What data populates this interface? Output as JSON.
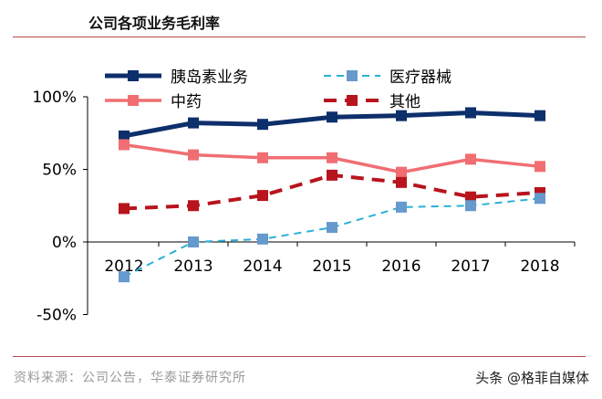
{
  "chart_data": {
    "type": "line",
    "title": "公司各项业务毛利率",
    "categories": [
      "2012",
      "2013",
      "2014",
      "2015",
      "2016",
      "2017",
      "2018"
    ],
    "ylim": [
      -50,
      100
    ],
    "yticks": [
      "100%",
      "50%",
      "0%",
      "-50%"
    ],
    "ytick_values": [
      100,
      50,
      0,
      -50
    ],
    "grid": false,
    "legend_placement": "top",
    "series": [
      {
        "name": "胰岛素业务",
        "color": "#0d2f6b",
        "dash": false,
        "values": [
          73,
          82,
          81,
          86,
          87,
          89,
          87
        ]
      },
      {
        "name": "医疗器械",
        "color": "#2ab0d6",
        "marker_color": "#6699cc",
        "dash": true,
        "values": [
          -24,
          0,
          2,
          10,
          24,
          25,
          30
        ]
      },
      {
        "name": "中药",
        "color": "#f06e72",
        "dash": false,
        "values": [
          67,
          60,
          58,
          58,
          48,
          57,
          52
        ]
      },
      {
        "name": "其他",
        "color": "#b8141e",
        "dash": true,
        "values": [
          23,
          25,
          32,
          46,
          41,
          31,
          34
        ]
      }
    ]
  },
  "source": "资料来源：公司公告，华泰证券研究所",
  "watermark": "头条 @格菲自媒体",
  "colors": {
    "rule": "#b8474a"
  }
}
